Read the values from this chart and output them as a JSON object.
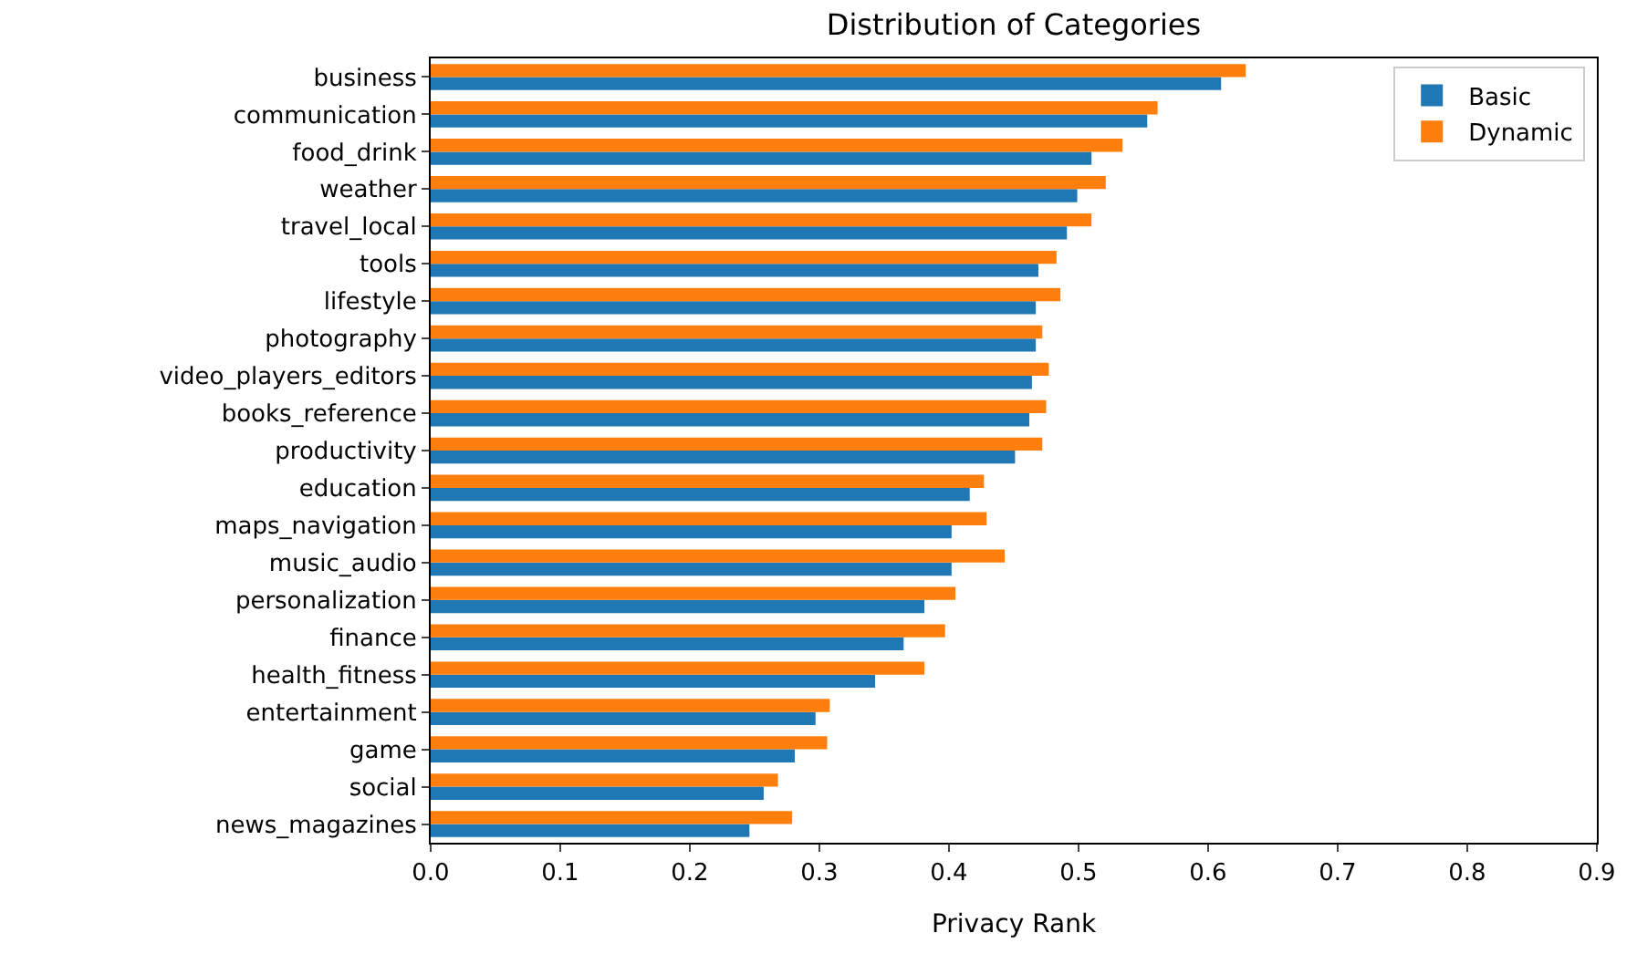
{
  "chart_data": {
    "type": "bar",
    "orientation": "horizontal",
    "title": "Distribution of Categories",
    "xlabel": "Privacy Rank",
    "categories": [
      "business",
      "communication",
      "food_drink",
      "weather",
      "travel_local",
      "tools",
      "lifestyle",
      "photography",
      "video_players_editors",
      "books_reference",
      "productivity",
      "education",
      "maps_navigation",
      "music_audio",
      "personalization",
      "finance",
      "health_fitness",
      "entertainment",
      "game",
      "social",
      "news_magazines"
    ],
    "series": [
      {
        "name": "Basic",
        "color": "#1f77b4",
        "values": [
          0.61,
          0.553,
          0.51,
          0.499,
          0.491,
          0.469,
          0.467,
          0.467,
          0.464,
          0.462,
          0.451,
          0.416,
          0.402,
          0.402,
          0.381,
          0.365,
          0.343,
          0.297,
          0.281,
          0.257,
          0.246
        ]
      },
      {
        "name": "Dynamic",
        "color": "#ff7f0e",
        "values": [
          0.629,
          0.561,
          0.534,
          0.521,
          0.51,
          0.483,
          0.486,
          0.472,
          0.477,
          0.475,
          0.472,
          0.427,
          0.429,
          0.443,
          0.405,
          0.397,
          0.381,
          0.308,
          0.306,
          0.268,
          0.279
        ]
      }
    ],
    "xlim": [
      0,
      0.9
    ],
    "xticks": [
      {
        "value": 0,
        "label": "0.0"
      },
      0.1,
      0.2,
      0.3,
      0.4,
      0.5,
      0.6,
      0.7,
      0.8,
      0.9
    ],
    "legend": "top right"
  }
}
